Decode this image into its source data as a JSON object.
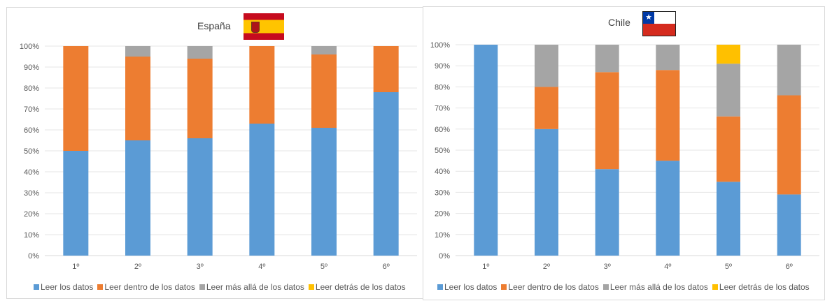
{
  "chart_data": [
    {
      "type": "bar",
      "stacked": true,
      "title": "España",
      "flag_icon": "spain-flag-icon",
      "categories": [
        "1º",
        "2º",
        "3º",
        "4º",
        "5º",
        "6º"
      ],
      "series": [
        {
          "name": "Leer los datos",
          "color": "#5b9bd5",
          "values": [
            50,
            55,
            56,
            63,
            61,
            78
          ]
        },
        {
          "name": "Leer dentro de los datos",
          "color": "#ed7d31",
          "values": [
            50,
            40,
            38,
            37,
            35,
            22
          ]
        },
        {
          "name": "Leer más allá de los datos",
          "color": "#a5a5a5",
          "values": [
            0,
            5,
            6,
            0,
            4,
            0
          ]
        },
        {
          "name": "Leer detrás de los datos",
          "color": "#ffc000",
          "values": [
            0,
            0,
            0,
            0,
            0,
            0
          ]
        }
      ],
      "ylim": [
        0,
        100
      ],
      "yticks": [
        "0%",
        "10%",
        "20%",
        "30%",
        "40%",
        "50%",
        "60%",
        "70%",
        "80%",
        "90%",
        "100%"
      ],
      "grid": true,
      "legend_position": "bottom"
    },
    {
      "type": "bar",
      "stacked": true,
      "title": "Chile",
      "flag_icon": "chile-flag-icon",
      "categories": [
        "1º",
        "2º",
        "3º",
        "4º",
        "5º",
        "6º"
      ],
      "series": [
        {
          "name": "Leer los datos",
          "color": "#5b9bd5",
          "values": [
            100,
            60,
            41,
            45,
            35,
            29
          ]
        },
        {
          "name": "Leer dentro de los datos",
          "color": "#ed7d31",
          "values": [
            0,
            20,
            46,
            43,
            31,
            47
          ]
        },
        {
          "name": "Leer más allá de los datos",
          "color": "#a5a5a5",
          "values": [
            0,
            20,
            13,
            12,
            25,
            24
          ]
        },
        {
          "name": "Leer detrás de los datos",
          "color": "#ffc000",
          "values": [
            0,
            0,
            0,
            0,
            9,
            0
          ]
        }
      ],
      "ylim": [
        0,
        100
      ],
      "yticks": [
        "0%",
        "10%",
        "20%",
        "30%",
        "40%",
        "50%",
        "60%",
        "70%",
        "80%",
        "90%",
        "100%"
      ],
      "grid": true,
      "legend_position": "bottom"
    }
  ]
}
